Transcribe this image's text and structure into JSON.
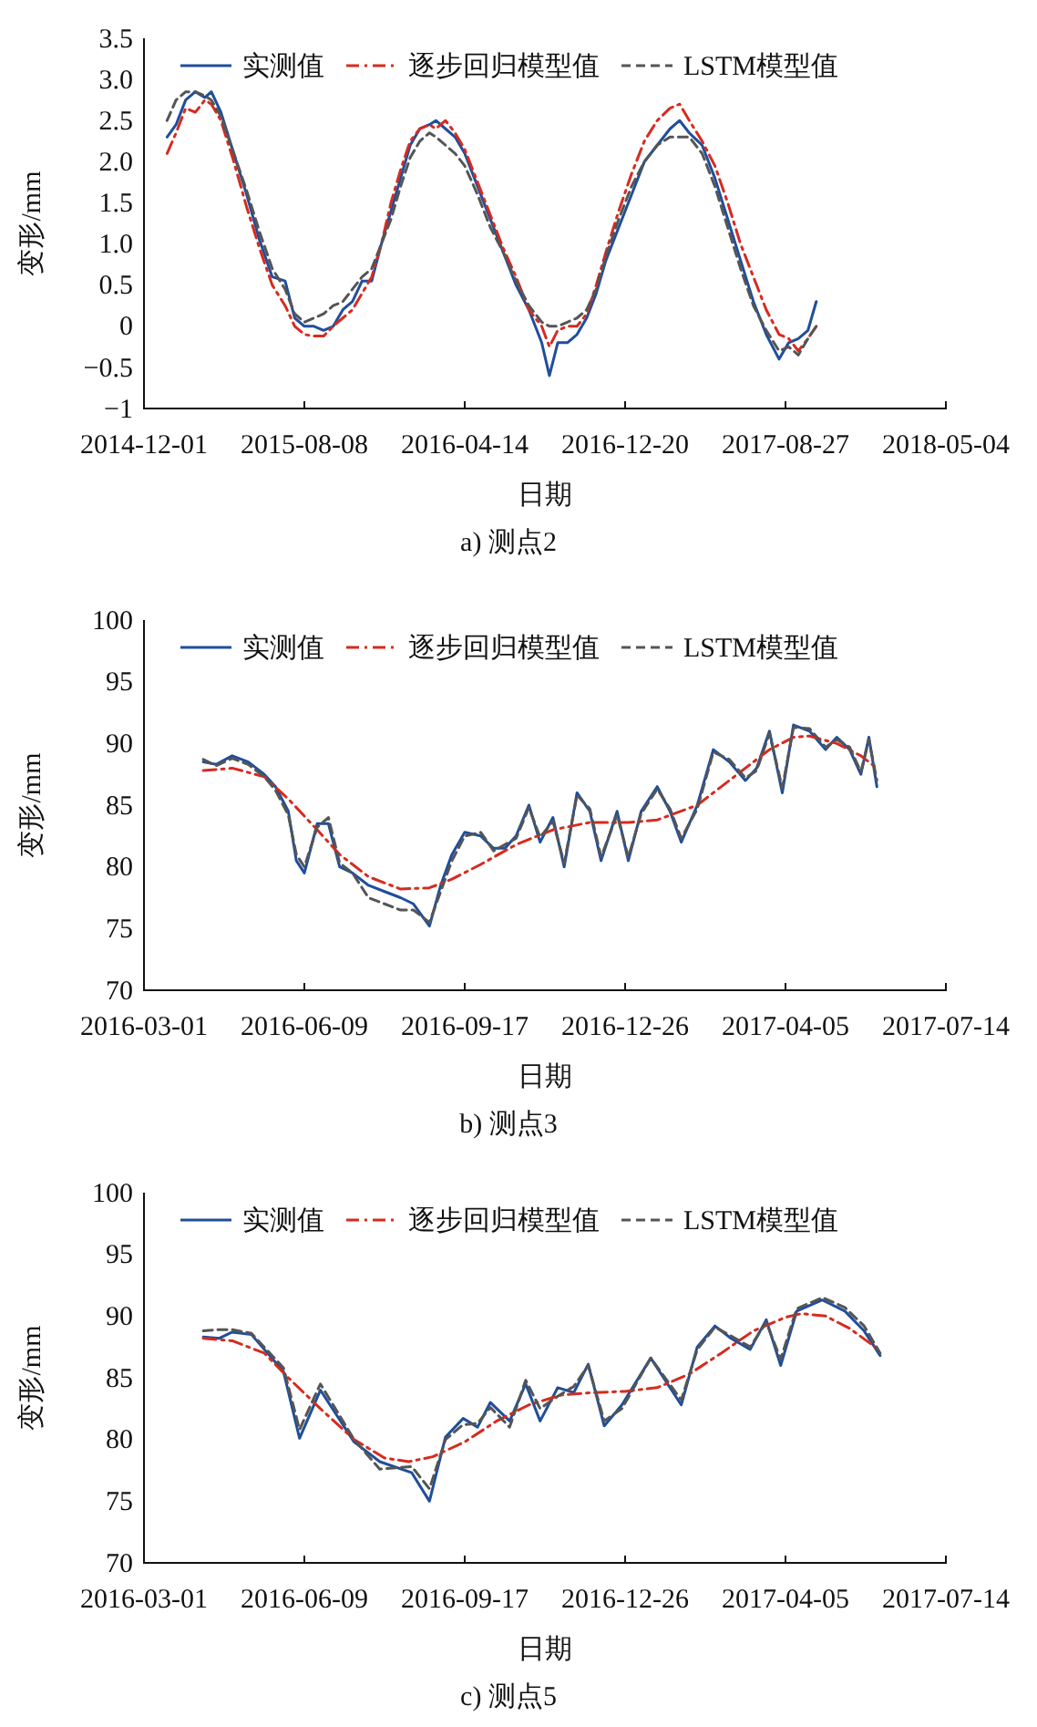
{
  "chart_data": [
    {
      "type": "line",
      "title": "a) 测点2",
      "xlabel": "日期",
      "ylabel": "变形/mm",
      "legend": "top",
      "grid": false,
      "xlim": [
        "2014-12-01",
        "2018-05-04"
      ],
      "xticks": [
        "2014-12-01",
        "2015-08-08",
        "2016-04-14",
        "2016-12-20",
        "2017-08-27",
        "2018-05-04"
      ],
      "ylim": [
        -1,
        3.5
      ],
      "yticks": [
        {
          "value": -1,
          "label": "−1"
        },
        {
          "value": -0.5,
          "label": "−0.5"
        },
        0,
        0.5,
        {
          "value": 1,
          "label": "1.0"
        },
        1.5,
        {
          "value": 2,
          "label": "2.0"
        },
        2.5,
        {
          "value": 3,
          "label": "3.0"
        },
        3.5
      ],
      "x": [
        "2015-01-06",
        "2015-01-20",
        "2015-02-04",
        "2015-02-19",
        "2015-03-06",
        "2015-03-16",
        "2015-03-31",
        "2015-04-20",
        "2015-05-10",
        "2015-05-30",
        "2015-06-19",
        "2015-07-09",
        "2015-07-24",
        "2015-08-08",
        "2015-08-23",
        "2015-09-07",
        "2015-09-22",
        "2015-10-07",
        "2015-10-22",
        "2015-11-06",
        "2015-11-21",
        "2015-12-06",
        "2015-12-21",
        "2016-01-05",
        "2016-01-20",
        "2016-02-04",
        "2016-02-19",
        "2016-02-29",
        "2016-03-15",
        "2016-03-30",
        "2016-04-14",
        "2016-05-04",
        "2016-05-24",
        "2016-06-13",
        "2016-07-03",
        "2016-07-23",
        "2016-08-12",
        "2016-08-24",
        "2016-09-06",
        "2016-09-21",
        "2016-10-06",
        "2016-10-21",
        "2016-11-05",
        "2016-11-20",
        "2016-12-10",
        "2016-12-30",
        "2017-01-19",
        "2017-02-08",
        "2017-02-28",
        "2017-03-15",
        "2017-03-30",
        "2017-04-19",
        "2017-05-09",
        "2017-05-29",
        "2017-06-18",
        "2017-07-08",
        "2017-07-28",
        "2017-08-17",
        "2017-09-01",
        "2017-09-16",
        "2017-10-01",
        "2017-10-14"
      ],
      "series": [
        {
          "name": "实测值",
          "color": "#1f4e9c",
          "line_style": "solid",
          "values": [
            2.3,
            2.45,
            2.75,
            2.85,
            2.78,
            2.85,
            2.6,
            2.1,
            1.6,
            1.05,
            0.6,
            0.55,
            0.1,
            0.0,
            0.0,
            -0.05,
            0.0,
            0.2,
            0.3,
            0.55,
            0.55,
            1.0,
            1.4,
            1.8,
            2.2,
            2.4,
            2.45,
            2.5,
            2.4,
            2.3,
            2.1,
            1.7,
            1.3,
            0.9,
            0.5,
            0.2,
            -0.2,
            -0.6,
            -0.2,
            -0.2,
            -0.1,
            0.1,
            0.4,
            0.8,
            1.2,
            1.6,
            2.0,
            2.2,
            2.4,
            2.5,
            2.35,
            2.2,
            1.8,
            1.3,
            0.8,
            0.3,
            -0.1,
            -0.4,
            -0.2,
            -0.15,
            -0.05,
            0.3
          ]
        },
        {
          "name": "逐步回归模型值",
          "color": "#d62b1f",
          "line_style": "dashdot",
          "values": [
            2.1,
            2.35,
            2.65,
            2.6,
            2.75,
            2.7,
            2.5,
            2.0,
            1.45,
            0.95,
            0.5,
            0.25,
            0.0,
            -0.1,
            -0.12,
            -0.12,
            0.0,
            0.1,
            0.2,
            0.4,
            0.6,
            1.0,
            1.5,
            1.9,
            2.25,
            2.4,
            2.45,
            2.4,
            2.5,
            2.35,
            2.15,
            1.75,
            1.35,
            0.95,
            0.6,
            0.2,
            0.0,
            -0.25,
            -0.05,
            0.0,
            0.0,
            0.15,
            0.5,
            0.9,
            1.4,
            1.85,
            2.25,
            2.5,
            2.65,
            2.7,
            2.5,
            2.25,
            1.95,
            1.5,
            1.0,
            0.6,
            0.2,
            -0.1,
            -0.15,
            -0.3,
            -0.15,
            0.0
          ]
        },
        {
          "name": "LSTM模型值",
          "color": "#555555",
          "line_style": "dashed",
          "values": [
            2.5,
            2.75,
            2.85,
            2.85,
            2.8,
            2.75,
            2.55,
            2.1,
            1.65,
            1.15,
            0.7,
            0.45,
            0.15,
            0.05,
            0.1,
            0.15,
            0.25,
            0.3,
            0.45,
            0.6,
            0.7,
            1.0,
            1.3,
            1.7,
            2.05,
            2.25,
            2.35,
            2.3,
            2.2,
            2.1,
            1.95,
            1.6,
            1.2,
            0.9,
            0.55,
            0.25,
            0.05,
            0.0,
            0.0,
            0.05,
            0.1,
            0.2,
            0.45,
            0.85,
            1.3,
            1.7,
            2.0,
            2.2,
            2.3,
            2.3,
            2.3,
            2.1,
            1.7,
            1.2,
            0.7,
            0.25,
            -0.05,
            -0.3,
            -0.25,
            -0.35,
            -0.15,
            0.0
          ]
        }
      ]
    },
    {
      "type": "line",
      "title": "b) 测点3",
      "xlabel": "日期",
      "ylabel": "变形/mm",
      "legend": "top",
      "grid": false,
      "xlim": [
        "2016-03-01",
        "2017-07-14"
      ],
      "xticks": [
        "2016-03-01",
        "2016-06-09",
        "2016-09-17",
        "2016-12-26",
        "2017-04-05",
        "2017-07-14"
      ],
      "ylim": [
        70,
        100
      ],
      "yticks": [
        70,
        75,
        80,
        85,
        90,
        95,
        100
      ],
      "series": [
        {
          "name": "实测值",
          "color": "#1f4e9c",
          "line_style": "solid",
          "x": [
            "2016-04-07",
            "2016-04-15",
            "2016-04-25",
            "2016-05-05",
            "2016-05-15",
            "2016-05-22",
            "2016-05-30",
            "2016-06-04",
            "2016-06-09",
            "2016-06-17",
            "2016-06-24",
            "2016-07-01",
            "2016-07-09",
            "2016-07-19",
            "2016-07-29",
            "2016-08-08",
            "2016-08-16",
            "2016-08-26",
            "2016-09-02",
            "2016-09-09",
            "2016-09-17",
            "2016-09-27",
            "2016-10-05",
            "2016-10-12",
            "2016-10-19",
            "2016-10-27",
            "2016-11-03",
            "2016-11-11",
            "2016-11-18",
            "2016-11-26",
            "2016-12-04",
            "2016-12-11",
            "2016-12-21",
            "2016-12-28",
            "2017-01-05",
            "2017-01-15",
            "2017-01-23",
            "2017-01-30",
            "2017-02-09",
            "2017-02-19",
            "2017-03-01",
            "2017-03-11",
            "2017-03-18",
            "2017-03-26",
            "2017-04-03",
            "2017-04-10",
            "2017-04-20",
            "2017-04-30",
            "2017-05-07",
            "2017-05-15",
            "2017-05-22",
            "2017-05-27",
            "2017-06-01"
          ],
          "values": [
            88.5,
            88.3,
            89.0,
            88.5,
            87.5,
            86.5,
            84.5,
            80.5,
            79.5,
            83.5,
            83.5,
            80.0,
            79.5,
            78.5,
            78.0,
            77.5,
            77.0,
            75.2,
            78.5,
            81.0,
            82.8,
            82.5,
            81.5,
            81.5,
            82.5,
            85.0,
            82.0,
            84.0,
            80.0,
            86.0,
            84.5,
            80.5,
            84.5,
            80.5,
            84.5,
            86.5,
            84.5,
            82.0,
            85.0,
            89.5,
            88.5,
            87.0,
            88.0,
            91.0,
            86.0,
            91.5,
            91.0,
            89.5,
            90.5,
            89.5,
            87.5,
            90.5,
            86.5
          ]
        },
        {
          "name": "逐步回归模型值",
          "color": "#d62b1f",
          "line_style": "dashdot",
          "x": [
            "2016-04-07",
            "2016-04-25",
            "2016-05-15",
            "2016-05-30",
            "2016-06-17",
            "2016-07-01",
            "2016-07-19",
            "2016-08-08",
            "2016-08-26",
            "2016-09-09",
            "2016-09-27",
            "2016-10-19",
            "2016-11-11",
            "2016-12-04",
            "2016-12-28",
            "2017-01-15",
            "2017-02-09",
            "2017-03-01",
            "2017-03-26",
            "2017-04-10",
            "2017-04-20",
            "2017-05-07",
            "2017-05-22",
            "2017-06-01"
          ],
          "values": [
            87.8,
            88.0,
            87.3,
            85.5,
            83.0,
            81.0,
            79.2,
            78.2,
            78.3,
            79.0,
            80.2,
            81.8,
            83.0,
            83.6,
            83.6,
            83.8,
            85.0,
            87.0,
            89.5,
            90.5,
            90.6,
            90.0,
            89.0,
            88.0
          ]
        },
        {
          "name": "LSTM模型值",
          "color": "#555555",
          "line_style": "dashed",
          "x": [
            "2016-04-07",
            "2016-04-15",
            "2016-04-25",
            "2016-05-05",
            "2016-05-15",
            "2016-05-22",
            "2016-05-30",
            "2016-06-04",
            "2016-06-09",
            "2016-06-17",
            "2016-06-24",
            "2016-07-01",
            "2016-07-09",
            "2016-07-19",
            "2016-07-29",
            "2016-08-08",
            "2016-08-16",
            "2016-08-26",
            "2016-09-02",
            "2016-09-09",
            "2016-09-17",
            "2016-09-27",
            "2016-10-05",
            "2016-10-12",
            "2016-10-19",
            "2016-10-27",
            "2016-11-03",
            "2016-11-11",
            "2016-11-18",
            "2016-11-26",
            "2016-12-04",
            "2016-12-11",
            "2016-12-21",
            "2016-12-28",
            "2017-01-05",
            "2017-01-15",
            "2017-01-23",
            "2017-01-30",
            "2017-02-09",
            "2017-02-19",
            "2017-03-01",
            "2017-03-11",
            "2017-03-18",
            "2017-03-26",
            "2017-04-03",
            "2017-04-10",
            "2017-04-20",
            "2017-04-30",
            "2017-05-07",
            "2017-05-15",
            "2017-05-22",
            "2017-05-27",
            "2017-06-01"
          ],
          "values": [
            88.7,
            88.2,
            88.8,
            88.3,
            87.3,
            86.2,
            84.2,
            81.0,
            80.0,
            83.2,
            84.0,
            80.3,
            79.5,
            77.5,
            77.0,
            76.5,
            76.5,
            75.5,
            78.0,
            80.5,
            82.5,
            82.8,
            81.3,
            81.8,
            82.3,
            84.8,
            82.4,
            83.7,
            80.3,
            85.8,
            84.7,
            80.8,
            84.2,
            80.8,
            84.3,
            86.3,
            84.7,
            82.3,
            84.7,
            89.3,
            88.7,
            87.2,
            87.8,
            90.8,
            86.4,
            91.3,
            91.2,
            89.7,
            90.3,
            89.7,
            87.7,
            90.3,
            87.0
          ]
        }
      ]
    },
    {
      "type": "line",
      "title": "c) 测点5",
      "xlabel": "日期",
      "ylabel": "变形/mm",
      "legend": "top",
      "grid": false,
      "xlim": [
        "2016-03-01",
        "2017-07-14"
      ],
      "xticks": [
        "2016-03-01",
        "2016-06-09",
        "2016-09-17",
        "2016-12-26",
        "2017-04-05",
        "2017-07-14"
      ],
      "ylim": [
        70,
        100
      ],
      "yticks": [
        70,
        75,
        80,
        85,
        90,
        95,
        100
      ],
      "series": [
        {
          "name": "实测值",
          "color": "#1f4e9c",
          "line_style": "solid",
          "x": [
            "2016-04-07",
            "2016-04-17",
            "2016-04-25",
            "2016-05-07",
            "2016-05-27",
            "2016-06-06",
            "2016-06-19",
            "2016-07-10",
            "2016-07-26",
            "2016-08-15",
            "2016-08-26",
            "2016-09-05",
            "2016-09-16",
            "2016-09-25",
            "2016-10-03",
            "2016-10-15",
            "2016-10-25",
            "2016-11-03",
            "2016-11-14",
            "2016-11-24",
            "2016-12-03",
            "2016-12-13",
            "2016-12-24",
            "2017-01-11",
            "2017-01-30",
            "2017-02-09",
            "2017-02-20",
            "2017-03-02",
            "2017-03-14",
            "2017-03-24",
            "2017-04-02",
            "2017-04-12",
            "2017-04-28",
            "2017-05-12",
            "2017-05-24",
            "2017-06-03"
          ],
          "values": [
            88.3,
            88.2,
            88.7,
            88.5,
            85.5,
            80.1,
            84.0,
            79.8,
            78.2,
            77.3,
            75.0,
            80.2,
            81.7,
            81.0,
            83.0,
            81.5,
            84.5,
            81.5,
            84.2,
            83.8,
            86.1,
            81.1,
            82.8,
            86.6,
            82.8,
            87.5,
            89.2,
            88.2,
            87.3,
            89.7,
            86.0,
            90.4,
            91.3,
            90.4,
            88.8,
            86.8
          ]
        },
        {
          "name": "逐步回归模型值",
          "color": "#d62b1f",
          "line_style": "dashdot",
          "x": [
            "2016-04-07",
            "2016-04-25",
            "2016-05-15",
            "2016-05-30",
            "2016-06-19",
            "2016-07-10",
            "2016-07-29",
            "2016-08-13",
            "2016-08-28",
            "2016-09-17",
            "2016-10-07",
            "2016-10-27",
            "2016-11-16",
            "2016-12-06",
            "2016-12-26",
            "2017-01-15",
            "2017-02-04",
            "2017-02-24",
            "2017-03-16",
            "2017-04-05",
            "2017-04-15",
            "2017-04-30",
            "2017-05-15",
            "2017-06-03"
          ],
          "values": [
            88.2,
            88.0,
            87.0,
            85.0,
            82.5,
            80.0,
            78.5,
            78.2,
            78.6,
            79.8,
            81.5,
            82.8,
            83.6,
            83.8,
            83.9,
            84.2,
            85.3,
            87.0,
            88.8,
            89.9,
            90.2,
            90.0,
            89.0,
            87.2
          ]
        },
        {
          "name": "LSTM模型值",
          "color": "#555555",
          "line_style": "dashed",
          "x": [
            "2016-04-07",
            "2016-04-17",
            "2016-04-25",
            "2016-05-07",
            "2016-05-27",
            "2016-06-06",
            "2016-06-19",
            "2016-07-10",
            "2016-07-26",
            "2016-08-15",
            "2016-08-26",
            "2016-09-05",
            "2016-09-16",
            "2016-09-25",
            "2016-10-03",
            "2016-10-15",
            "2016-10-25",
            "2016-11-03",
            "2016-11-14",
            "2016-11-24",
            "2016-12-03",
            "2016-12-13",
            "2016-12-24",
            "2017-01-11",
            "2017-01-30",
            "2017-02-09",
            "2017-02-20",
            "2017-03-02",
            "2017-03-14",
            "2017-03-24",
            "2017-04-02",
            "2017-04-12",
            "2017-04-28",
            "2017-05-12",
            "2017-05-24",
            "2017-06-03"
          ],
          "values": [
            88.8,
            88.9,
            88.9,
            88.6,
            85.8,
            80.8,
            84.5,
            80.0,
            77.6,
            77.8,
            76.0,
            80.0,
            81.2,
            81.3,
            82.6,
            81.0,
            84.8,
            82.5,
            83.5,
            84.3,
            86.0,
            81.5,
            82.5,
            86.6,
            83.2,
            87.3,
            89.1,
            88.4,
            87.5,
            89.5,
            86.5,
            90.6,
            91.5,
            90.7,
            89.2,
            87.0
          ]
        }
      ]
    }
  ]
}
